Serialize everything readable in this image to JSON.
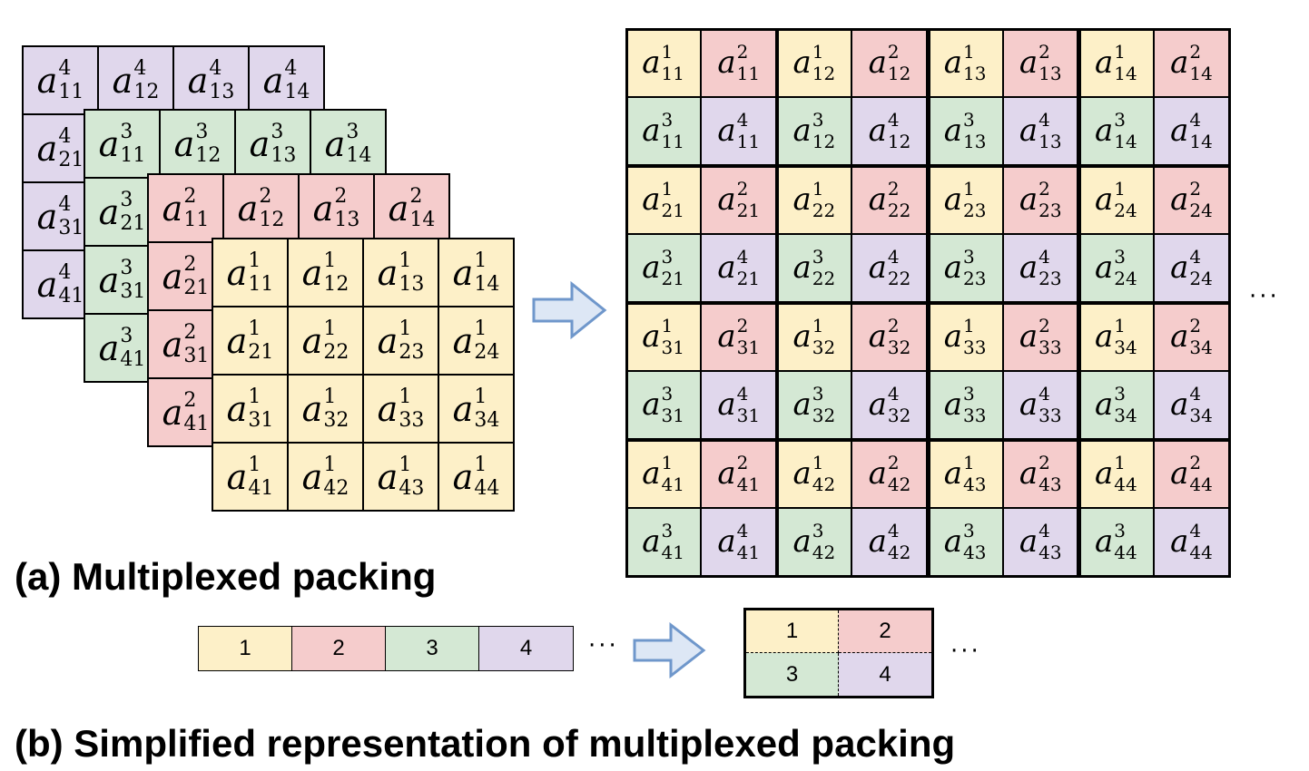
{
  "colors": {
    "layer_1": "#fdf0c8",
    "layer_2": "#f5cccc",
    "layer_3": "#d4e8d4",
    "layer_4": "#e0d7ec",
    "arrow_stroke": "#6f97cb",
    "arrow_fill": "#dde7f5"
  },
  "symbol": "a",
  "layer_indices": [
    "1",
    "2",
    "3",
    "4"
  ],
  "matrix_indices": [
    [
      "11",
      "12",
      "13",
      "14"
    ],
    [
      "21",
      "22",
      "23",
      "24"
    ],
    [
      "31",
      "32",
      "33",
      "34"
    ],
    [
      "41",
      "42",
      "43",
      "44"
    ]
  ],
  "ellipsis": "···",
  "caption_a": "(a) Multiplexed packing",
  "caption_b": "(b) Simplified representation of multiplexed packing",
  "strip_labels": [
    "1",
    "2",
    "3",
    "4"
  ],
  "mini_labels": [
    "1",
    "2",
    "3",
    "4"
  ]
}
